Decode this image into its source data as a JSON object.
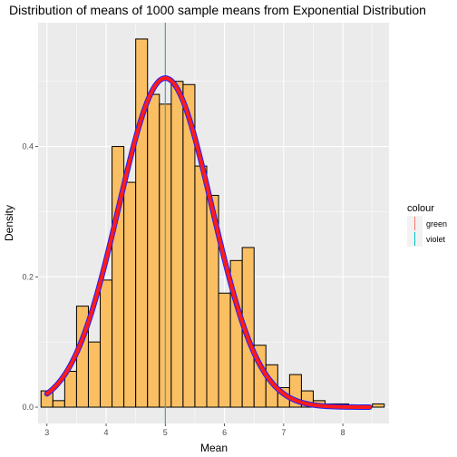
{
  "chart_data": {
    "type": "bar",
    "title": "Distribution of means of 1000 sample means from Exponential Distribution",
    "xlabel": "Mean",
    "ylabel": "Density",
    "xlim": [
      2.85,
      8.78
    ],
    "ylim": [
      -0.025,
      0.59
    ],
    "x_ticks": [
      3,
      4,
      5,
      6,
      7,
      8
    ],
    "y_ticks": [
      0.0,
      0.2,
      0.4
    ],
    "y_tick_labels": [
      "0.0",
      "0.2",
      "0.4"
    ],
    "grid": true,
    "histogram": {
      "bin_width": 0.2,
      "bins": [
        {
          "x0": 2.9,
          "density": 0.025
        },
        {
          "x0": 3.1,
          "density": 0.01
        },
        {
          "x0": 3.3,
          "density": 0.055
        },
        {
          "x0": 3.5,
          "density": 0.155
        },
        {
          "x0": 3.7,
          "density": 0.1
        },
        {
          "x0": 3.9,
          "density": 0.195
        },
        {
          "x0": 4.1,
          "density": 0.4
        },
        {
          "x0": 4.3,
          "density": 0.345
        },
        {
          "x0": 4.5,
          "density": 0.565
        },
        {
          "x0": 4.7,
          "density": 0.48
        },
        {
          "x0": 4.9,
          "density": 0.465
        },
        {
          "x0": 5.1,
          "density": 0.5
        },
        {
          "x0": 5.3,
          "density": 0.495
        },
        {
          "x0": 5.5,
          "density": 0.37
        },
        {
          "x0": 5.7,
          "density": 0.325
        },
        {
          "x0": 5.9,
          "density": 0.175
        },
        {
          "x0": 6.1,
          "density": 0.225
        },
        {
          "x0": 6.3,
          "density": 0.245
        },
        {
          "x0": 6.5,
          "density": 0.095
        },
        {
          "x0": 6.7,
          "density": 0.065
        },
        {
          "x0": 6.9,
          "density": 0.03
        },
        {
          "x0": 7.1,
          "density": 0.05
        },
        {
          "x0": 7.3,
          "density": 0.025
        },
        {
          "x0": 7.5,
          "density": 0.01
        },
        {
          "x0": 7.7,
          "density": 0.005
        },
        {
          "x0": 7.9,
          "density": 0.005
        },
        {
          "x0": 8.1,
          "density": 0.0
        },
        {
          "x0": 8.3,
          "density": 0.0
        },
        {
          "x0": 8.5,
          "density": 0.005
        }
      ]
    },
    "curves": [
      {
        "legend": "green",
        "color": "#ff1a1a",
        "kind": "normal-density",
        "mean": 5.0,
        "sd": 0.79
      },
      {
        "legend": "violet",
        "color": "#2020ff",
        "kind": "normal-density",
        "mean": 5.0,
        "sd": 0.79
      }
    ],
    "vlines": [
      {
        "legend": "green",
        "x": 5.0,
        "color": "#f8766d"
      },
      {
        "legend": "violet",
        "x": 5.0,
        "color": "#00bfc4"
      }
    ],
    "legend": {
      "title": "colour",
      "placement": "right",
      "entries": [
        {
          "label": "green",
          "color": "#f8766d"
        },
        {
          "label": "violet",
          "color": "#00bfc4"
        }
      ]
    },
    "colors": {
      "bar_fill": "#fbbf63",
      "bar_stroke": "#000000",
      "panel_bg": "#ebebeb",
      "grid_major": "#ffffff"
    }
  }
}
